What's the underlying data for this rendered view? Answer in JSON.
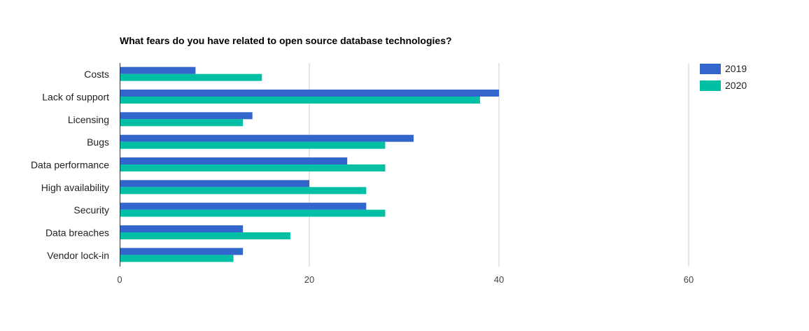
{
  "chart_data": {
    "type": "bar",
    "orientation": "horizontal",
    "title": "What fears do you have related to open source database technologies?",
    "categories": [
      "Costs",
      "Lack of support",
      "Licensing",
      "Bugs",
      "Data performance",
      "High availability",
      "Security",
      "Data breaches",
      "Vendor lock-in"
    ],
    "series": [
      {
        "name": "2019",
        "color": "#3366cc",
        "values": [
          8,
          40,
          14,
          31,
          24,
          20,
          26,
          13,
          13
        ]
      },
      {
        "name": "2020",
        "color": "#00bfa5",
        "values": [
          15,
          38,
          13,
          28,
          28,
          26,
          28,
          18,
          12
        ]
      }
    ],
    "xlim": [
      0,
      60
    ],
    "xticks": [
      0,
      20,
      40,
      60
    ],
    "grid": true,
    "legend_position": "right"
  }
}
